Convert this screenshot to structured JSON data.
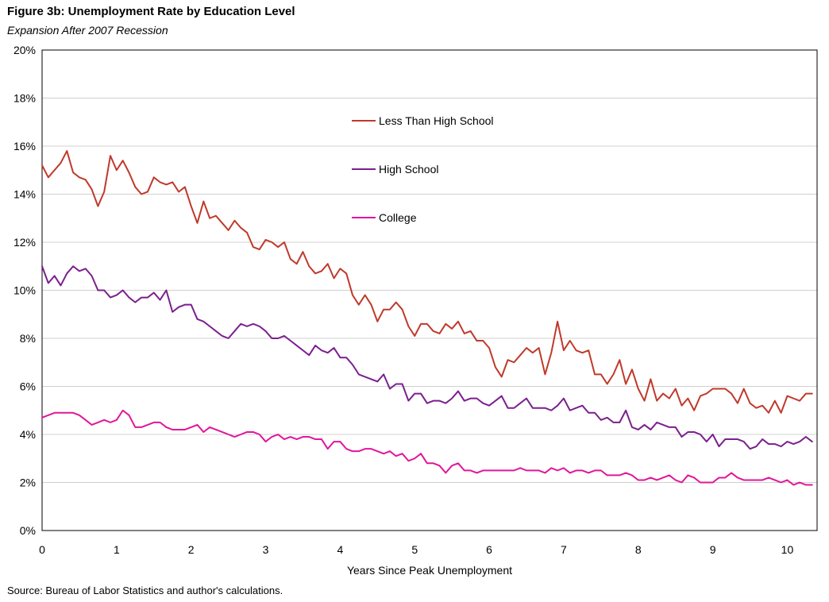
{
  "title": "Figure 3b: Unemployment Rate by Education Level",
  "subtitle": "Expansion After 2007 Recession",
  "source": "Source: Bureau of Labor Statistics and author's calculations.",
  "chart_data": {
    "type": "line",
    "title": "Figure 3b: Unemployment Rate by Education Level",
    "subtitle": "Expansion After 2007 Recession",
    "xlabel": "Years Since Peak Unemployment",
    "ylabel": "",
    "xlim": [
      0,
      10.4
    ],
    "ylim": [
      0,
      20
    ],
    "x_ticks": [
      0,
      1,
      2,
      3,
      4,
      5,
      6,
      7,
      8,
      9,
      10
    ],
    "x_tick_labels": [
      "0",
      "1",
      "2",
      "3",
      "4",
      "5",
      "6",
      "7",
      "8",
      "9",
      "10"
    ],
    "y_ticks": [
      0,
      2,
      4,
      6,
      8,
      10,
      12,
      14,
      16,
      18,
      20
    ],
    "y_tick_labels": [
      "0%",
      "2%",
      "4%",
      "6%",
      "8%",
      "10%",
      "12%",
      "14%",
      "16%",
      "18%",
      "20%"
    ],
    "x_start": 0,
    "x_step": 0.0833333,
    "grid": true,
    "legend": "inside upper center",
    "series": [
      {
        "name": "Less Than High School",
        "color": "#C0392B",
        "values": [
          15.2,
          14.7,
          15.0,
          15.3,
          15.8,
          14.9,
          14.7,
          14.6,
          14.2,
          13.5,
          14.1,
          15.6,
          15.0,
          15.4,
          14.9,
          14.3,
          14.0,
          14.1,
          14.7,
          14.5,
          14.4,
          14.5,
          14.1,
          14.3,
          13.5,
          12.8,
          13.7,
          13.0,
          13.1,
          12.8,
          12.5,
          12.9,
          12.6,
          12.4,
          11.8,
          11.7,
          12.1,
          12.0,
          11.8,
          12.0,
          11.3,
          11.1,
          11.6,
          11.0,
          10.7,
          10.8,
          11.1,
          10.5,
          10.9,
          10.7,
          9.8,
          9.4,
          9.8,
          9.4,
          8.7,
          9.2,
          9.2,
          9.5,
          9.2,
          8.5,
          8.1,
          8.6,
          8.6,
          8.3,
          8.2,
          8.6,
          8.4,
          8.7,
          8.2,
          8.3,
          7.9,
          7.9,
          7.6,
          6.8,
          6.4,
          7.1,
          7.0,
          7.3,
          7.6,
          7.4,
          7.6,
          6.5,
          7.4,
          8.7,
          7.5,
          7.9,
          7.5,
          7.4,
          7.5,
          6.5,
          6.5,
          6.1,
          6.5,
          7.1,
          6.1,
          6.7,
          5.9,
          5.4,
          6.3,
          5.4,
          5.7,
          5.5,
          5.9,
          5.2,
          5.5,
          5.0,
          5.6,
          5.7,
          5.9,
          5.9,
          5.9,
          5.7,
          5.3,
          5.9,
          5.3,
          5.1,
          5.2,
          4.9,
          5.4,
          4.9,
          5.6,
          5.5,
          5.4,
          5.7,
          5.7
        ]
      },
      {
        "name": "High School",
        "color": "#7B1F8E",
        "values": [
          11.0,
          10.3,
          10.6,
          10.2,
          10.7,
          11.0,
          10.8,
          10.9,
          10.6,
          10.0,
          10.0,
          9.7,
          9.8,
          10.0,
          9.7,
          9.5,
          9.7,
          9.7,
          9.9,
          9.6,
          10.0,
          9.1,
          9.3,
          9.4,
          9.4,
          8.8,
          8.7,
          8.5,
          8.3,
          8.1,
          8.0,
          8.3,
          8.6,
          8.5,
          8.6,
          8.5,
          8.3,
          8.0,
          8.0,
          8.1,
          7.9,
          7.7,
          7.5,
          7.3,
          7.7,
          7.5,
          7.4,
          7.6,
          7.2,
          7.2,
          6.9,
          6.5,
          6.4,
          6.3,
          6.2,
          6.5,
          5.9,
          6.1,
          6.1,
          5.4,
          5.7,
          5.7,
          5.3,
          5.4,
          5.4,
          5.3,
          5.5,
          5.8,
          5.4,
          5.5,
          5.5,
          5.3,
          5.2,
          5.4,
          5.6,
          5.1,
          5.1,
          5.3,
          5.5,
          5.1,
          5.1,
          5.1,
          5.0,
          5.2,
          5.5,
          5.0,
          5.1,
          5.2,
          4.9,
          4.9,
          4.6,
          4.7,
          4.5,
          4.5,
          5.0,
          4.3,
          4.2,
          4.4,
          4.2,
          4.5,
          4.4,
          4.3,
          4.3,
          3.9,
          4.1,
          4.1,
          4.0,
          3.7,
          4.0,
          3.5,
          3.8,
          3.8,
          3.8,
          3.7,
          3.4,
          3.5,
          3.8,
          3.6,
          3.6,
          3.5,
          3.7,
          3.6,
          3.7,
          3.9,
          3.7
        ]
      },
      {
        "name": "College",
        "color": "#E0169A",
        "values": [
          4.7,
          4.8,
          4.9,
          4.9,
          4.9,
          4.9,
          4.8,
          4.6,
          4.4,
          4.5,
          4.6,
          4.5,
          4.6,
          5.0,
          4.8,
          4.3,
          4.3,
          4.4,
          4.5,
          4.5,
          4.3,
          4.2,
          4.2,
          4.2,
          4.3,
          4.4,
          4.1,
          4.3,
          4.2,
          4.1,
          4.0,
          3.9,
          4.0,
          4.1,
          4.1,
          4.0,
          3.7,
          3.9,
          4.0,
          3.8,
          3.9,
          3.8,
          3.9,
          3.9,
          3.8,
          3.8,
          3.4,
          3.7,
          3.7,
          3.4,
          3.3,
          3.3,
          3.4,
          3.4,
          3.3,
          3.2,
          3.3,
          3.1,
          3.2,
          2.9,
          3.0,
          3.2,
          2.8,
          2.8,
          2.7,
          2.4,
          2.7,
          2.8,
          2.5,
          2.5,
          2.4,
          2.5,
          2.5,
          2.5,
          2.5,
          2.5,
          2.5,
          2.6,
          2.5,
          2.5,
          2.5,
          2.4,
          2.6,
          2.5,
          2.6,
          2.4,
          2.5,
          2.5,
          2.4,
          2.5,
          2.5,
          2.3,
          2.3,
          2.3,
          2.4,
          2.3,
          2.1,
          2.1,
          2.2,
          2.1,
          2.2,
          2.3,
          2.1,
          2.0,
          2.3,
          2.2,
          2.0,
          2.0,
          2.0,
          2.2,
          2.2,
          2.4,
          2.2,
          2.1,
          2.1,
          2.1,
          2.1,
          2.2,
          2.1,
          2.0,
          2.1,
          1.9,
          2.0,
          1.9,
          1.9
        ]
      }
    ]
  }
}
